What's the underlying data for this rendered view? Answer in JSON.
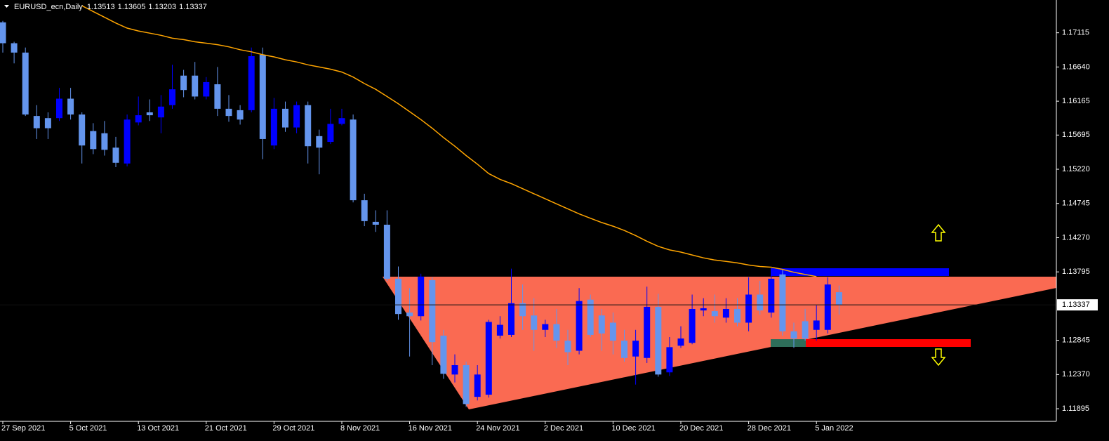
{
  "chart_data": {
    "type": "candlestick",
    "symbol": "EURUSD_ecn,Daily",
    "categories": [
      "27 Sep 2021",
      null,
      null,
      null,
      null,
      null,
      "5 Oct 2021",
      null,
      null,
      null,
      null,
      null,
      "13 Oct 2021",
      null,
      null,
      null,
      null,
      null,
      "21 Oct 2021",
      null,
      null,
      null,
      null,
      null,
      "29 Oct 2021",
      null,
      null,
      null,
      null,
      null,
      "8 Nov 2021",
      null,
      null,
      null,
      null,
      null,
      "16 Nov 2021",
      null,
      null,
      null,
      null,
      null,
      "24 Nov 2021",
      null,
      null,
      null,
      null,
      null,
      "2 Dec 2021",
      null,
      null,
      null,
      null,
      null,
      "10 Dec 2021",
      null,
      null,
      null,
      null,
      null,
      "20 Dec 2021",
      null,
      null,
      null,
      null,
      null,
      "28 Dec 2021",
      null,
      null,
      null,
      null,
      null,
      "5 Jan 2022",
      null,
      null
    ],
    "open": [
      1.1726,
      1.1697,
      1.1684,
      1.1596,
      1.1593,
      1.1593,
      1.162,
      1.1598,
      1.1575,
      1.1572,
      1.1552,
      1.153,
      1.1587,
      1.1601,
      1.1594,
      1.1611,
      1.1652,
      1.1652,
      1.1623,
      1.164,
      1.1606,
      1.1604,
      1.1604,
      1.1681,
      1.1555,
      1.1606,
      1.158,
      1.1611,
      1.1568,
      1.156,
      1.1585,
      1.1591,
      1.1479,
      1.1449,
      1.1445,
      1.137,
      1.1323,
      1.1318,
      1.1368,
      1.1291,
      1.1237,
      1.125,
      1.1206,
      1.1209,
      1.1291,
      1.1292,
      1.1336,
      1.1319,
      1.1299,
      1.1307,
      1.1284,
      1.127,
      1.1341,
      1.1319,
      1.1309,
      1.1284,
      1.1262,
      1.126,
      1.1331,
      1.124,
      1.1277,
      1.1281,
      1.1326,
      1.1325,
      1.1316,
      1.1328,
      1.1309,
      1.1348,
      1.1323,
      1.1376,
      1.1297,
      1.1311,
      1.1299,
      1.1299,
      1.13513
    ],
    "high": [
      1.1728,
      1.1699,
      1.1691,
      1.1611,
      1.1601,
      1.1635,
      1.1635,
      1.1601,
      1.1586,
      1.1589,
      1.1567,
      1.1598,
      1.1623,
      1.1619,
      1.1625,
      1.1667,
      1.166,
      1.1671,
      1.165,
      1.1664,
      1.1625,
      1.1611,
      1.1691,
      1.1691,
      1.1621,
      1.1616,
      1.1616,
      1.1616,
      1.1577,
      1.1606,
      1.1606,
      1.1598,
      1.1488,
      1.1465,
      1.1465,
      1.1387,
      1.1357,
      1.1377,
      1.1372,
      1.1299,
      1.1265,
      1.1255,
      1.125,
      1.1313,
      1.1318,
      1.1384,
      1.1362,
      1.1343,
      1.1313,
      1.1328,
      1.1299,
      1.1357,
      1.1348,
      1.1328,
      1.1323,
      1.1299,
      1.1299,
      1.1359,
      1.1349,
      1.1289,
      1.1304,
      1.1348,
      1.1343,
      1.1348,
      1.1343,
      1.1343,
      1.1372,
      1.1367,
      1.1382,
      1.1382,
      1.1309,
      1.1328,
      1.1333,
      1.1372,
      1.13605
    ],
    "low": [
      1.1684,
      1.1669,
      1.1596,
      1.1564,
      1.1564,
      1.1589,
      1.1591,
      1.153,
      1.1543,
      1.1541,
      1.1525,
      1.1526,
      1.1583,
      1.1589,
      1.1572,
      1.1606,
      1.1622,
      1.1619,
      1.1619,
      1.1596,
      1.1588,
      1.1584,
      1.1601,
      1.1536,
      1.155,
      1.1574,
      1.1572,
      1.153,
      1.1515,
      1.1557,
      1.1583,
      1.1476,
      1.1443,
      1.1435,
      1.1367,
      1.1313,
      1.1262,
      1.1312,
      1.125,
      1.1231,
      1.1226,
      1.1192,
      1.1201,
      1.1205,
      1.1287,
      1.1289,
      1.1299,
      1.127,
      1.1289,
      1.1274,
      1.125,
      1.1265,
      1.1289,
      1.127,
      1.1265,
      1.1255,
      1.1223,
      1.1253,
      1.1234,
      1.1235,
      1.1274,
      1.1279,
      1.1318,
      1.1309,
      1.1309,
      1.1304,
      1.1297,
      1.132,
      1.1316,
      1.1291,
      1.1274,
      1.1284,
      1.1284,
      1.1294,
      1.13203
    ],
    "close": [
      1.1697,
      1.1684,
      1.1598,
      1.1579,
      1.1579,
      1.162,
      1.1598,
      1.1555,
      1.155,
      1.1549,
      1.1531,
      1.1591,
      1.1597,
      1.1597,
      1.1609,
      1.1633,
      1.1632,
      1.1623,
      1.1643,
      1.1606,
      1.1596,
      1.1591,
      1.1679,
      1.1564,
      1.1606,
      1.158,
      1.1611,
      1.1554,
      1.1552,
      1.1585,
      1.1593,
      1.1479,
      1.145,
      1.1445,
      1.137,
      1.1321,
      1.1318,
      1.1373,
      1.1282,
      1.1238,
      1.125,
      1.1196,
      1.1237,
      1.131,
      1.1306,
      1.1336,
      1.1318,
      1.1299,
      1.1307,
      1.1284,
      1.1268,
      1.1339,
      1.1292,
      1.1294,
      1.1284,
      1.126,
      1.1284,
      1.1331,
      1.1237,
      1.1275,
      1.1287,
      1.1328,
      1.1329,
      1.1318,
      1.1328,
      1.1309,
      1.1348,
      1.1326,
      1.137,
      1.1297,
      1.1287,
      1.1287,
      1.1312,
      1.1362,
      1.13337
    ],
    "ma": [
      null,
      null,
      null,
      null,
      null,
      null,
      null,
      1.1749,
      1.1741,
      1.1733,
      1.1725,
      1.1718,
      1.1714,
      1.1711,
      1.1708,
      1.1704,
      1.1702,
      1.1699,
      1.1697,
      1.1695,
      1.1692,
      1.1688,
      1.1685,
      1.1681,
      1.1678,
      1.1674,
      1.1671,
      1.1667,
      1.1664,
      1.1661,
      1.1657,
      1.165,
      1.1641,
      1.1633,
      1.1623,
      1.1613,
      1.1602,
      1.1591,
      1.1579,
      1.1566,
      1.1554,
      1.1541,
      1.1529,
      1.1516,
      1.1508,
      1.1502,
      1.1495,
      1.1488,
      1.1481,
      1.1474,
      1.1467,
      1.146,
      1.1454,
      1.1448,
      1.1443,
      1.1437,
      1.143,
      1.1422,
      1.1415,
      1.141,
      1.1407,
      1.1403,
      1.1399,
      1.1396,
      1.1394,
      1.1392,
      1.1389,
      1.1387,
      1.1386,
      1.1383,
      1.1379,
      1.1376,
      1.1373,
      null,
      null
    ],
    "up_color": "#0000ff",
    "down_color": "#6495ed",
    "ma_color": "#ffa500",
    "ylim": [
      1.1172,
      1.1757
    ],
    "yticks": [
      1.11895,
      {
        "value": 1.1237,
        "label": "1.12370"
      },
      1.12845,
      1.13795,
      {
        "value": 1.1427,
        "label": "1.14270"
      },
      1.14745,
      {
        "value": 1.1522,
        "label": "1.15220"
      },
      1.15695,
      1.16165,
      {
        "value": 1.1664,
        "label": "1.16640"
      },
      1.17115
    ]
  }
}
